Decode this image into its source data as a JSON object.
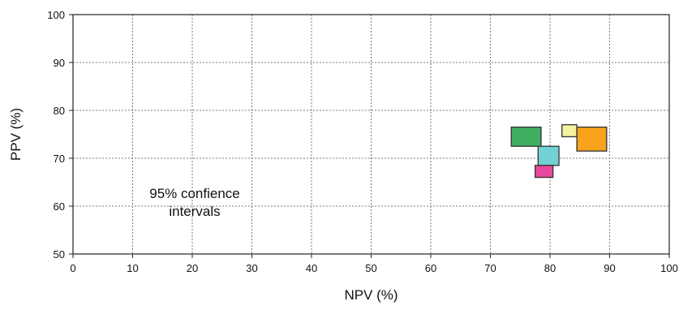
{
  "chart_data": {
    "type": "scatter",
    "title": "",
    "xlabel": "NPV (%)",
    "ylabel": "PPV (%)",
    "xlim": [
      0,
      100
    ],
    "ylim": [
      50,
      100
    ],
    "x_ticks": [
      0,
      10,
      20,
      30,
      40,
      50,
      60,
      70,
      80,
      90,
      100
    ],
    "y_ticks": [
      50,
      60,
      70,
      80,
      90,
      100
    ],
    "grid": true,
    "annotation": [
      "95% confience",
      "intervals"
    ],
    "series": [
      {
        "x_range": [
          73.5,
          78.5
        ],
        "y_range": [
          72.5,
          76.5
        ],
        "color": "#3fb060"
      },
      {
        "x_range": [
          78.0,
          81.5
        ],
        "y_range": [
          68.5,
          72.5
        ],
        "color": "#72d2d5"
      },
      {
        "x_range": [
          77.5,
          80.5
        ],
        "y_range": [
          66.0,
          68.5
        ],
        "color": "#e8489c"
      },
      {
        "x_range": [
          82.0,
          84.5
        ],
        "y_range": [
          74.5,
          77.0
        ],
        "color": "#f5f2a0"
      },
      {
        "x_range": [
          84.5,
          89.5
        ],
        "y_range": [
          71.5,
          76.5
        ],
        "color": "#f9a21b"
      }
    ]
  }
}
